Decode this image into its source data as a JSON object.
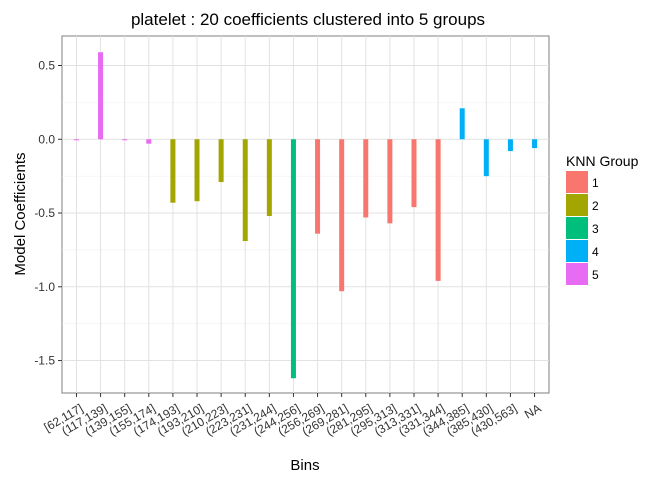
{
  "chart_data": {
    "type": "bar",
    "title": "platelet : 20 coefficients clustered into 5 groups",
    "xlabel": "Bins",
    "ylabel": "Model Coefficients",
    "ylim": [
      -1.72,
      0.7
    ],
    "yticks": [
      0.5,
      0.0,
      -0.5,
      -1.0,
      -1.5
    ],
    "ytick_labels": [
      "0.5",
      "0.0",
      "-0.5",
      "-1.0",
      "-1.5"
    ],
    "grid": true,
    "legend_position": "right",
    "legend": {
      "title": "KNN Group",
      "entries": [
        {
          "label": "1",
          "color": "#F8766D"
        },
        {
          "label": "2",
          "color": "#A3A500"
        },
        {
          "label": "3",
          "color": "#00BF7D"
        },
        {
          "label": "4",
          "color": "#00B0F6"
        },
        {
          "label": "5",
          "color": "#E76BF3"
        }
      ]
    },
    "categories": [
      "[62,117]",
      "(117,139]",
      "(139,155]",
      "(155,174]",
      "(174,193]",
      "(193,210]",
      "(210,223]",
      "(223,231]",
      "(231,244]",
      "(244,256]",
      "(256,269]",
      "(269,281]",
      "(281,295]",
      "(295,313]",
      "(313,331]",
      "(331,344]",
      "(344,385]",
      "(385,430]",
      "(430,563]",
      "NA"
    ],
    "values": [
      -0.005,
      0.59,
      -0.005,
      -0.03,
      -0.43,
      -0.42,
      -0.29,
      -0.69,
      -0.52,
      -1.62,
      -0.64,
      -1.03,
      -0.53,
      -0.57,
      -0.46,
      -0.96,
      0.21,
      -0.25,
      -0.08,
      -0.06
    ],
    "groups": [
      "5",
      "5",
      "5",
      "5",
      "2",
      "2",
      "2",
      "2",
      "2",
      "3",
      "1",
      "1",
      "1",
      "1",
      "1",
      "1",
      "4",
      "4",
      "4",
      "4"
    ]
  }
}
